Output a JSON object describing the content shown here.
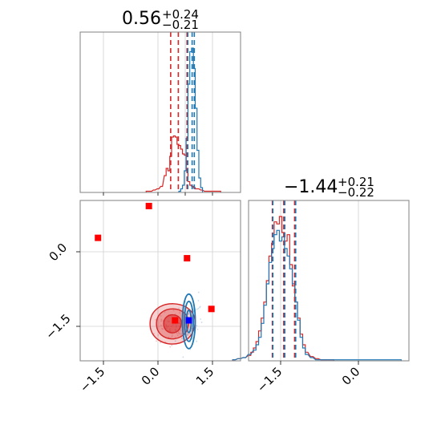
{
  "chart_data": [
    {
      "type": "histogram",
      "panel": "marginal-param-1",
      "title": {
        "base": "0.56",
        "sup": "+0.24",
        "sub": "−0.21"
      },
      "xlim": [
        -2.0,
        2.0
      ],
      "grid": true,
      "series": [
        {
          "color": "#d62728",
          "bin_centers": [
            -0.3,
            -0.2,
            -0.1,
            0.0,
            0.1,
            0.2,
            0.25,
            0.3,
            0.35,
            0.4,
            0.45,
            0.5,
            0.55,
            0.6,
            0.65,
            0.7,
            0.75,
            0.8,
            0.85,
            0.9,
            0.95,
            1.0,
            1.05,
            1.1,
            1.2,
            1.3,
            1.5,
            1.7
          ],
          "counts": [
            1,
            1,
            2,
            3,
            5,
            14,
            20,
            18,
            30,
            46,
            47,
            46,
            40,
            39,
            36,
            32,
            31,
            20,
            9,
            6,
            5,
            4,
            3,
            3,
            2,
            1,
            1,
            1
          ],
          "quantiles": [
            0.35,
            0.56,
            0.8
          ]
        },
        {
          "color": "#1f77b4",
          "bin_centers": [
            0.6,
            0.65,
            0.7,
            0.75,
            0.8,
            0.85,
            0.9,
            0.95,
            1.0,
            1.05,
            1.1,
            1.15,
            1.2
          ],
          "counts": [
            1,
            3,
            6,
            18,
            45,
            90,
            117,
            120,
            103,
            70,
            35,
            12,
            4
          ],
          "quantiles": [
            0.82,
            0.94,
            1.0
          ]
        }
      ]
    },
    {
      "type": "histogram",
      "panel": "marginal-param-2",
      "title": {
        "base": "−1.44",
        "sup": "+0.21",
        "sub": "−0.22"
      },
      "xlim": [
        -2.5,
        1.0
      ],
      "xticks": [
        "−1.5",
        "0.0"
      ],
      "grid": true,
      "series": [
        {
          "color": "#d62728",
          "bin_centers": [
            -2.4,
            -2.3,
            -2.2,
            -2.1,
            -2.05,
            -2.0,
            -1.95,
            -1.9,
            -1.85,
            -1.8,
            -1.75,
            -1.7,
            -1.65,
            -1.6,
            -1.55,
            -1.5,
            -1.45,
            -1.4,
            -1.35,
            -1.3,
            -1.25,
            -1.2,
            -1.15,
            -1.1,
            -1.05,
            -1.0,
            -0.9,
            -0.8,
            -0.7,
            -0.5
          ],
          "counts": [
            1,
            2,
            3,
            5,
            8,
            12,
            18,
            28,
            40,
            55,
            75,
            98,
            110,
            130,
            128,
            135,
            120,
            112,
            118,
            90,
            70,
            55,
            40,
            25,
            15,
            8,
            4,
            2,
            1,
            1
          ],
          "quantiles": [
            -1.66,
            -1.44,
            -1.23
          ]
        },
        {
          "color": "#1f77b4",
          "bin_centers": [
            -2.4,
            -2.3,
            -2.2,
            -2.1,
            -2.0,
            -1.95,
            -1.9,
            -1.85,
            -1.8,
            -1.75,
            -1.7,
            -1.65,
            -1.6,
            -1.55,
            -1.5,
            -1.45,
            -1.4,
            -1.35,
            -1.3,
            -1.25,
            -1.2,
            -1.15,
            -1.1,
            -1.05,
            -1.0,
            -0.9,
            -0.8,
            0.8
          ],
          "counts": [
            1,
            2,
            3,
            6,
            10,
            15,
            22,
            35,
            52,
            72,
            92,
            105,
            118,
            122,
            112,
            116,
            105,
            98,
            86,
            72,
            55,
            38,
            22,
            12,
            6,
            3,
            1,
            1
          ],
          "quantiles": [
            -1.65,
            -1.42,
            -1.21
          ]
        }
      ]
    },
    {
      "type": "scatter",
      "panel": "joint-param-1-vs-param-2",
      "xlim": [
        -2.0,
        2.0
      ],
      "ylim": [
        -2.2,
        0.95
      ],
      "xticks": [
        "−1.5",
        "0.0",
        "1.5"
      ],
      "yticks": [
        "0.0",
        "−1.5"
      ],
      "grid": true,
      "markers": {
        "red_squares": [
          {
            "x": -1.65,
            "y": 0.28
          },
          {
            "x": -0.25,
            "y": 0.92
          },
          {
            "x": 0.8,
            "y": -0.13
          },
          {
            "x": 1.47,
            "y": -1.15
          },
          {
            "x": 0.47,
            "y": -1.38
          }
        ],
        "blue_square": {
          "x": 0.85,
          "y": -1.38
        }
      },
      "contours": {
        "red_center": {
          "x": 0.4,
          "y": -1.45
        },
        "blue_center": {
          "x": 0.85,
          "y": -1.4
        },
        "levels_sigma": [
          0.5,
          1.0,
          1.5
        ]
      }
    }
  ],
  "colors": {
    "red": "#d62728",
    "blue": "#1f77b4",
    "marker_red": "#ff0000",
    "marker_blue": "#0000ff",
    "grid": "#d0d0d0",
    "axis": "#808080"
  }
}
